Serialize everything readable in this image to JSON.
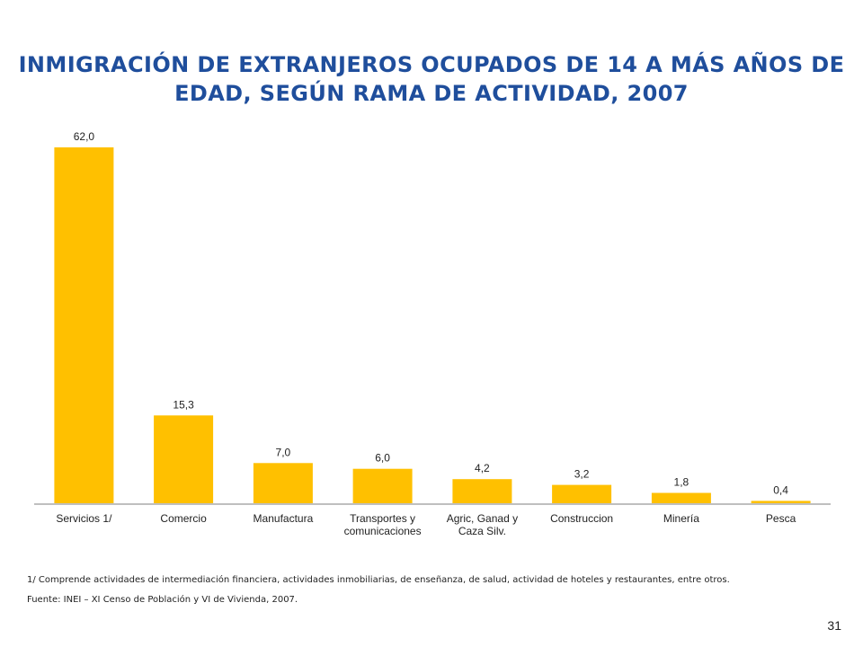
{
  "slide": {
    "title_line1": "INMIGRACIÓN DE EXTRANJEROS OCUPADOS DE 14 A MÁS AÑOS DE",
    "title_line2": "EDAD, SEGÚN RAMA DE ACTIVIDAD, 2007",
    "note": "1/ Comprende actividades de intermediación financiera, actividades inmobiliarias, de enseñanza, de salud, actividad de hoteles y restaurantes, entre otros.",
    "source": "Fuente: INEI – XI Censo de Población y VI de Vivienda, 2007.",
    "page_number": "31"
  },
  "colors": {
    "bar": "#FFC000",
    "title": "#1F4E9C",
    "axis": "#BFBFBF"
  },
  "chart_data": {
    "type": "bar",
    "title": "INMIGRACIÓN DE EXTRANJEROS OCUPADOS DE 14 A MÁS AÑOS DE EDAD, SEGÚN RAMA DE ACTIVIDAD, 2007",
    "categories": [
      [
        "Servicios 1/"
      ],
      [
        "Comercio"
      ],
      [
        "Manufactura"
      ],
      [
        "Transportes y",
        "comunicaciones"
      ],
      [
        "Agric, Ganad y",
        "Caza Silv."
      ],
      [
        "Construccion"
      ],
      [
        "Minería"
      ],
      [
        "Pesca"
      ]
    ],
    "values": [
      62.0,
      15.3,
      7.0,
      6.0,
      4.2,
      3.2,
      1.8,
      0.4
    ],
    "value_labels": [
      "62,0",
      "15,3",
      "7,0",
      "6,0",
      "4,2",
      "3,2",
      "1,8",
      "0,4"
    ],
    "xlabel": "",
    "ylabel": "",
    "ylim": [
      0,
      62.0
    ],
    "grid": false,
    "legend": "none"
  }
}
